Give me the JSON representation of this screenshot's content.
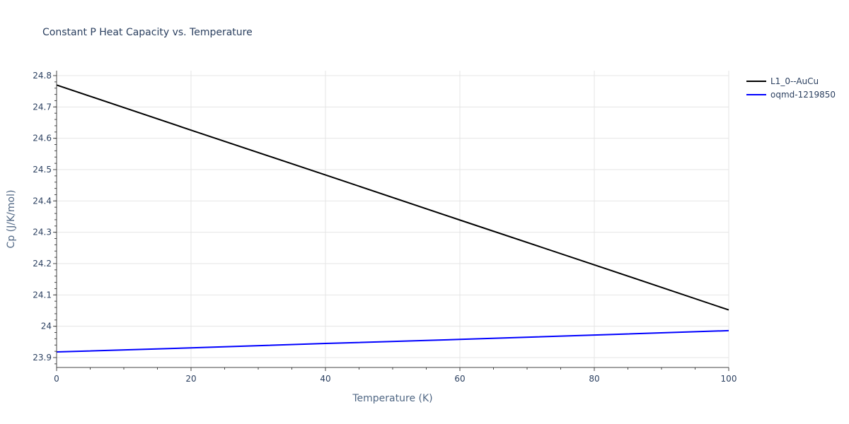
{
  "chart_data": {
    "type": "line",
    "title": "Constant P Heat Capacity vs. Temperature",
    "xlabel": "Temperature (K)",
    "ylabel": "Cp (J/K/mol)",
    "xlim": [
      0,
      100
    ],
    "ylim": [
      23.87,
      24.81
    ],
    "x_ticks": [
      0,
      20,
      40,
      60,
      80,
      100
    ],
    "y_ticks": [
      23.9,
      24,
      24.1,
      24.2,
      24.3,
      24.4,
      24.5,
      24.6,
      24.7,
      24.8
    ],
    "y_tick_labels": [
      "23.9",
      "24",
      "24.1",
      "24.2",
      "24.3",
      "24.4",
      "24.5",
      "24.6",
      "24.7",
      "24.8"
    ],
    "grid": true,
    "legend_position": "top-right-outside",
    "series": [
      {
        "name": "L1_0--AuCu",
        "color": "#000000",
        "x": [
          0,
          20,
          40,
          60,
          80,
          100
        ],
        "values": [
          24.77,
          24.626,
          24.483,
          24.339,
          24.196,
          24.052
        ]
      },
      {
        "name": "oqmd-1219850",
        "color": "#0000ff",
        "x": [
          0,
          20,
          40,
          60,
          80,
          100
        ],
        "values": [
          23.918,
          23.931,
          23.945,
          23.958,
          23.972,
          23.986
        ]
      }
    ]
  }
}
